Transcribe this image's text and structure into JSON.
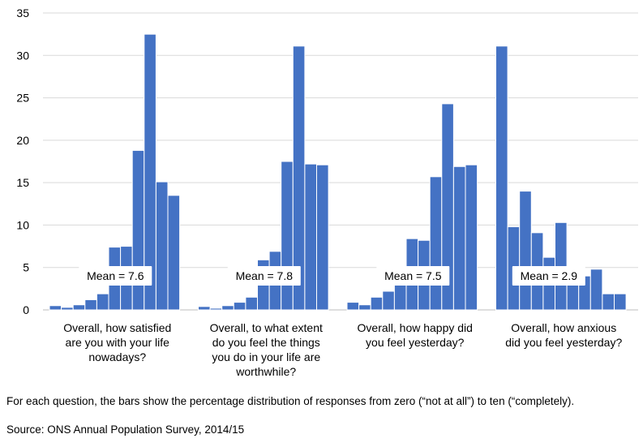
{
  "chart_data": {
    "type": "bar",
    "y_ticks": [
      0,
      5,
      10,
      15,
      20,
      25,
      30,
      35
    ],
    "ylim": [
      0,
      35
    ],
    "grid": true,
    "bar_color": "#4472c4",
    "groups": [
      {
        "label_lines": [
          "Overall, how satisfied",
          "are you with your life",
          "nowadays?"
        ],
        "mean_label": "Mean = 7.6",
        "values": [
          0.5,
          0.3,
          0.6,
          1.2,
          1.9,
          7.4,
          7.5,
          18.8,
          32.5,
          15.1,
          13.5
        ]
      },
      {
        "label_lines": [
          "Overall, to what extent",
          "do you feel the things",
          "you do in your life are",
          "worthwhile?"
        ],
        "mean_label": "Mean = 7.8",
        "values": [
          0.4,
          0.2,
          0.5,
          0.9,
          1.5,
          5.9,
          6.9,
          17.5,
          31.1,
          17.2,
          17.1
        ]
      },
      {
        "label_lines": [
          "Overall, how happy did",
          "you feel yesterday?"
        ],
        "mean_label": "Mean = 7.5",
        "values": [
          0.9,
          0.6,
          1.5,
          2.2,
          3.3,
          8.4,
          8.2,
          15.7,
          24.3,
          16.9,
          17.1
        ]
      },
      {
        "label_lines": [
          "Overall, how anxious",
          "did you feel yesterday?"
        ],
        "mean_label": "Mean = 2.9",
        "values": [
          31.1,
          9.8,
          14.0,
          9.1,
          6.2,
          10.3,
          4.0,
          4.0,
          4.8,
          1.9,
          1.9
        ]
      }
    ]
  },
  "footer": {
    "note": "For each question, the bars show the percentage distribution of responses from zero (“not at all”) to ten (“completely).",
    "source": "Source: ONS Annual Population Survey, 2014/15"
  }
}
